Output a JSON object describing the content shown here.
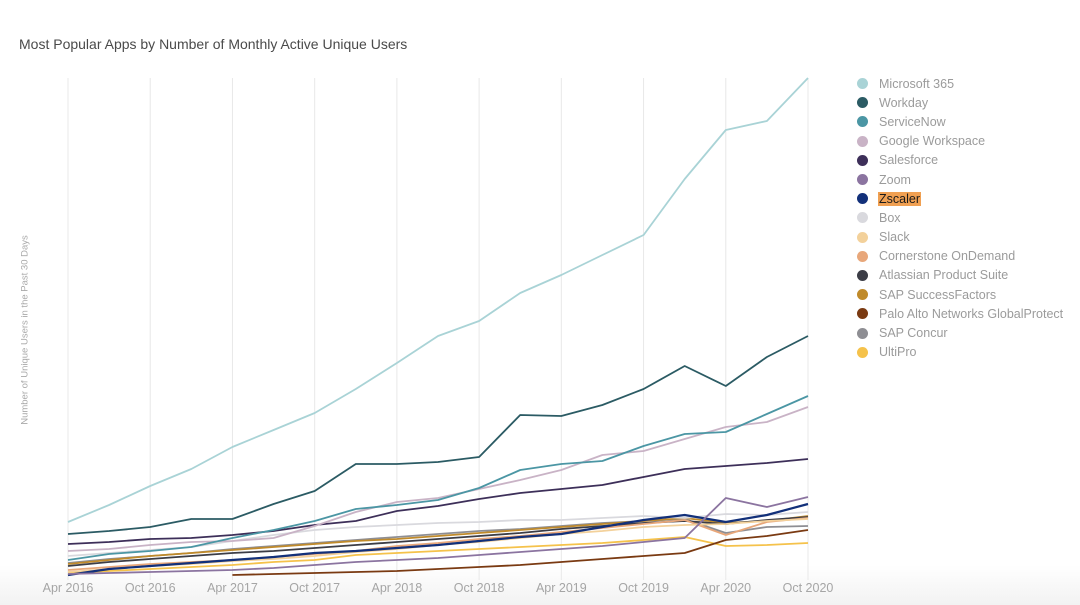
{
  "chart_data": {
    "type": "line",
    "title": "Most Popular Apps by Number of Monthly Active Unique Users",
    "xlabel": "",
    "ylabel": "Number of Unique Users in the Past 30 Days",
    "y_units": "relative index (no y tick labels shown; 100 = chart top)",
    "ylim": [
      0,
      100
    ],
    "grid": "vertical",
    "legend_position": "right",
    "x": [
      "Apr 2016",
      "Jul 2016",
      "Oct 2016",
      "Jan 2017",
      "Apr 2017",
      "Jul 2017",
      "Oct 2017",
      "Jan 2018",
      "Apr 2018",
      "Jul 2018",
      "Oct 2018",
      "Jan 2019",
      "Apr 2019",
      "Jul 2019",
      "Oct 2019",
      "Jan 2020",
      "Apr 2020",
      "Jul 2020",
      "Oct 2020"
    ],
    "x_tick_labels": [
      "Apr 2016",
      "Oct 2016",
      "Apr 2017",
      "Oct 2017",
      "Apr 2018",
      "Oct 2018",
      "Apr 2019",
      "Oct 2019",
      "Apr 2020",
      "Oct 2020"
    ],
    "highlighted_series": "Zscaler",
    "series": [
      {
        "name": "Microsoft 365",
        "color": "#a9d3d6",
        "values": [
          11.2,
          14.6,
          18.4,
          21.8,
          26.2,
          29.6,
          33.0,
          37.8,
          43.0,
          48.4,
          51.4,
          57.0,
          60.6,
          64.6,
          68.6,
          79.8,
          89.6,
          91.4,
          100.0
        ]
      },
      {
        "name": "Workday",
        "color": "#2b5b64",
        "values": [
          8.8,
          9.4,
          10.2,
          11.8,
          11.8,
          14.8,
          17.4,
          22.8,
          22.8,
          23.2,
          24.2,
          32.6,
          32.4,
          34.6,
          37.8,
          42.4,
          38.4,
          44.2,
          48.4
        ]
      },
      {
        "name": "ServiceNow",
        "color": "#4b96a4",
        "values": [
          3.6,
          4.8,
          5.4,
          6.2,
          8.0,
          9.6,
          11.4,
          13.8,
          14.6,
          15.6,
          18.0,
          21.6,
          22.8,
          23.4,
          26.4,
          28.8,
          29.2,
          32.8,
          36.4
        ]
      },
      {
        "name": "Google Workspace",
        "color": "#c9b3c6",
        "values": [
          5.4,
          5.8,
          6.6,
          7.2,
          7.4,
          8.0,
          10.4,
          13.2,
          15.2,
          16.0,
          17.8,
          19.6,
          21.6,
          24.6,
          25.4,
          27.8,
          30.2,
          31.2,
          34.2
        ]
      },
      {
        "name": "Salesforce",
        "color": "#3d2f59",
        "values": [
          6.8,
          7.2,
          7.8,
          8.0,
          8.6,
          9.4,
          10.6,
          11.4,
          13.4,
          14.4,
          15.8,
          17.0,
          17.8,
          18.6,
          20.2,
          21.8,
          22.4,
          23.0,
          23.8
        ]
      },
      {
        "name": "Zoom",
        "color": "#8b74a0",
        "values": [
          0.8,
          1.0,
          1.2,
          1.4,
          1.6,
          2.0,
          2.6,
          3.2,
          3.6,
          4.0,
          4.6,
          5.2,
          5.8,
          6.4,
          7.2,
          8.0,
          16.0,
          14.2,
          16.2
        ]
      },
      {
        "name": "Zscaler",
        "color": "#12307a",
        "values": [
          0.6,
          1.8,
          2.4,
          3.0,
          3.6,
          4.2,
          5.0,
          5.4,
          6.0,
          6.6,
          7.4,
          8.2,
          8.8,
          10.2,
          11.6,
          12.6,
          11.2,
          12.6,
          14.8
        ]
      },
      {
        "name": "Box",
        "color": "#d9d9de",
        "values": [
          4.4,
          5.0,
          5.6,
          6.2,
          7.4,
          8.6,
          9.6,
          10.2,
          10.6,
          11.0,
          11.2,
          11.6,
          11.6,
          12.0,
          12.4,
          12.0,
          12.8,
          12.6,
          13.2
        ]
      },
      {
        "name": "Slack",
        "color": "#f3d19b",
        "values": [
          1.2,
          1.8,
          2.4,
          2.8,
          3.4,
          3.8,
          4.4,
          5.2,
          5.8,
          6.6,
          7.2,
          8.0,
          8.8,
          9.4,
          10.2,
          10.6,
          10.8,
          11.4,
          11.8
        ]
      },
      {
        "name": "Cornerstone OnDemand",
        "color": "#e8a77a",
        "values": [
          1.6,
          2.2,
          2.8,
          3.2,
          3.6,
          4.2,
          4.8,
          5.4,
          6.4,
          7.0,
          7.8,
          8.4,
          9.2,
          10.0,
          10.8,
          11.6,
          8.6,
          11.2,
          12.0
        ]
      },
      {
        "name": "Atlassian Product Suite",
        "color": "#3c3d46",
        "values": [
          2.4,
          3.2,
          3.8,
          4.4,
          5.0,
          5.4,
          6.0,
          6.6,
          7.2,
          7.8,
          8.4,
          9.0,
          9.8,
          10.4,
          11.0,
          11.4,
          10.8,
          11.6,
          12.2
        ]
      },
      {
        "name": "SAP SuccessFactors",
        "color": "#c08a2a",
        "values": [
          2.8,
          3.6,
          4.4,
          5.0,
          5.6,
          6.2,
          6.8,
          7.4,
          7.8,
          8.4,
          9.0,
          9.6,
          10.2,
          10.8,
          11.4,
          12.0,
          11.0,
          11.4,
          12.4
        ]
      },
      {
        "name": "Palo Alto Networks GlobalProtect",
        "color": "#7a3a12",
        "values": [
          null,
          null,
          null,
          null,
          0.6,
          0.8,
          1.0,
          1.2,
          1.4,
          1.8,
          2.2,
          2.6,
          3.2,
          3.8,
          4.4,
          5.0,
          7.6,
          8.4,
          9.6
        ]
      },
      {
        "name": "SAP Concur",
        "color": "#8e8e93",
        "values": [
          3.0,
          3.8,
          4.4,
          5.0,
          5.8,
          6.4,
          7.0,
          7.6,
          8.2,
          8.8,
          9.4,
          9.8,
          10.4,
          11.0,
          11.4,
          11.8,
          9.0,
          10.2,
          10.4
        ]
      },
      {
        "name": "UltiPro",
        "color": "#f5c24b",
        "values": [
          1.0,
          1.4,
          1.8,
          2.2,
          2.6,
          3.2,
          3.6,
          4.6,
          5.0,
          5.4,
          5.8,
          6.2,
          6.6,
          7.0,
          7.6,
          8.2,
          6.4,
          6.6,
          7.0
        ]
      }
    ]
  }
}
